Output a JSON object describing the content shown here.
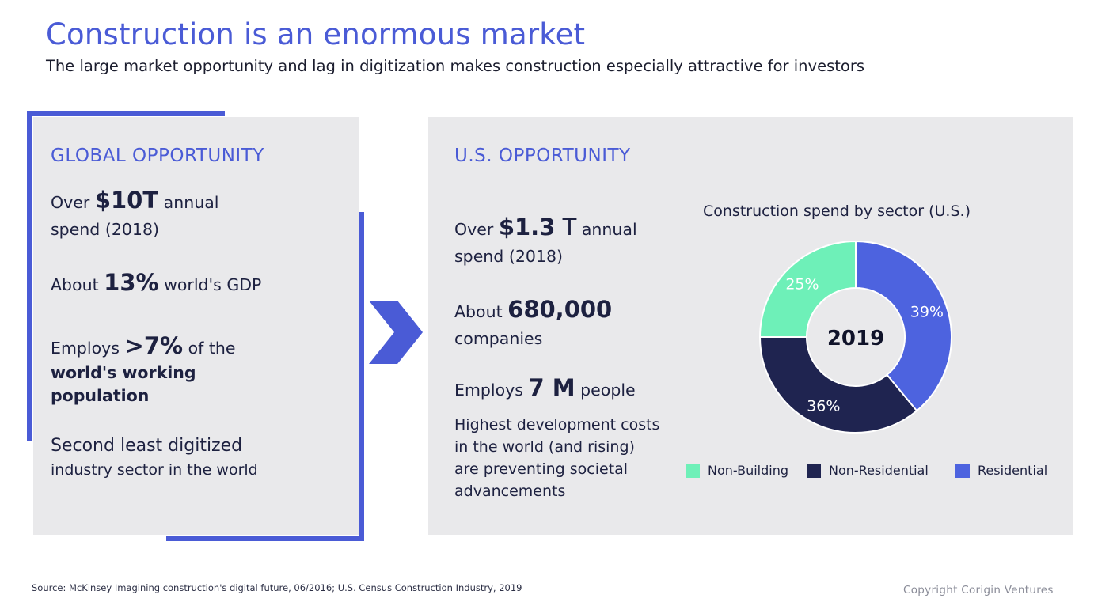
{
  "header": {
    "title": "Construction is an enormous market",
    "subtitle": "The large market opportunity and lag in digitization makes construction especially attractive for investors"
  },
  "global": {
    "heading": "GLOBAL OPPORTUNITY",
    "s1_pre": "Over ",
    "s1_big": "$10T",
    "s1_post": " annual",
    "s1_line2": "spend (2018)",
    "s2_pre": "About ",
    "s2_big": "13%",
    "s2_post": " world's GDP",
    "s3_pre": "Employs ",
    "s3_big": ">7%",
    "s3_post": " of the",
    "s3_line2": "world's working",
    "s3_line3": "population",
    "s4_line1": "Second least digitized",
    "s4_line2": "industry sector in the world"
  },
  "us": {
    "heading": "U.S. OPPORTUNITY",
    "s1_pre": "Over ",
    "s1_big": "$1.3",
    "s1_mid": " T",
    "s1_post": " annual",
    "s1_line2": "spend (2018)",
    "s2_pre": "About ",
    "s2_big": "680,000",
    "s2_line2": "companies",
    "s3_pre": "Employs ",
    "s3_big": "7 M",
    "s3_post": " people",
    "s4_line1": "Highest development costs",
    "s4_line2": "in the world (and rising)",
    "s4_line3": "are preventing societal",
    "s4_line4": "advancements"
  },
  "chart_data": {
    "type": "pie",
    "title": "Construction spend by sector (U.S.)",
    "center_label": "2019",
    "categories": [
      "Residential",
      "Non-Residential",
      "Non-Building"
    ],
    "values": [
      39,
      36,
      25
    ],
    "value_labels": [
      "39%",
      "36%",
      "25%"
    ],
    "colors": [
      "#4d63df",
      "#1f2450",
      "#6ef0b8"
    ],
    "legend_order": [
      "Non-Building",
      "Non-Residential",
      "Residential"
    ],
    "legend_position": "bottom"
  },
  "footer": {
    "source": "Source: McKinsey Imagining construction's digital future, 06/2016; U.S. Census Construction Industry, 2019",
    "copyright": "Copyright Corigin Ventures"
  }
}
